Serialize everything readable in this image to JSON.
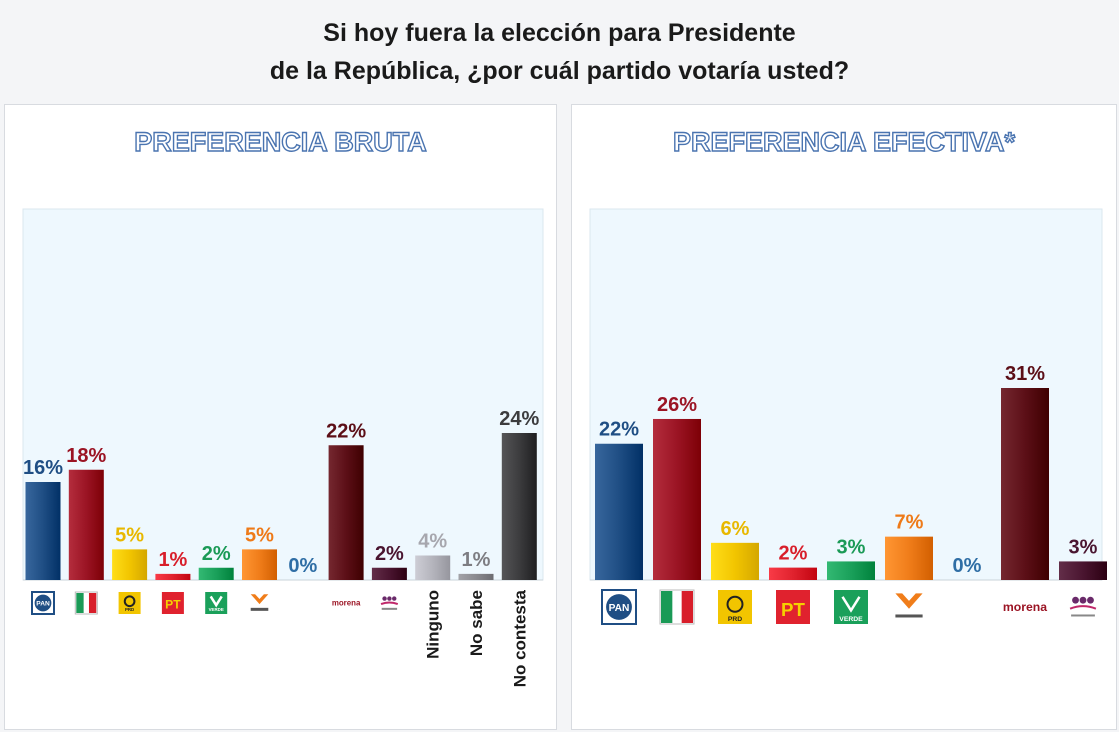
{
  "title": {
    "line1": "Si hoy fuera la elección para Presidente",
    "line2": "de la República, ¿por cuál partido votaría usted?"
  },
  "panels": {
    "left_title": "PREFERENCIA BRUTA",
    "right_title": "PREFERENCIA EFECTIVA*"
  },
  "colors": {
    "PAN": "#1f4e84",
    "PRI": "#9b1424",
    "PRD": "#f2c500",
    "PT": "#e0222e",
    "VERDE": "#1aa05a",
    "MC": "#f07d1a",
    "MORENA": "#5c0f17",
    "OTHER": "#4a1530",
    "NINGUNO": "#b4b4bc",
    "NOSABE": "#8a8a8f",
    "NOCONTESTA": "#3c3c3e"
  },
  "logo_texts": {
    "PAN": "PAN",
    "PRD": "PRD",
    "PT": "PT",
    "VERDE": "VERDE",
    "MORENA": "morena"
  },
  "chart_data": [
    {
      "type": "bar",
      "title": "PREFERENCIA BRUTA",
      "categories": [
        "PAN",
        "PRI",
        "PRD",
        "PT",
        "VERDE",
        "MC",
        "",
        "MORENA",
        "OTHER",
        "Ninguno",
        "No sabe",
        "No contesta"
      ],
      "values": [
        16,
        18,
        5,
        1,
        2,
        5,
        0,
        22,
        2,
        4,
        1,
        24
      ],
      "labels": [
        "16%",
        "18%",
        "5%",
        "1%",
        "2%",
        "5%",
        "0%",
        "22%",
        "2%",
        "4%",
        "1%",
        "24%"
      ],
      "ylim": [
        0,
        24
      ]
    },
    {
      "type": "bar",
      "title": "PREFERENCIA EFECTIVA*",
      "categories": [
        "PAN",
        "PRI",
        "PRD",
        "PT",
        "VERDE",
        "MC",
        "",
        "MORENA",
        "OTHER"
      ],
      "values": [
        22,
        26,
        6,
        2,
        3,
        7,
        0,
        31,
        3
      ],
      "labels": [
        "22%",
        "26%",
        "6%",
        "2%",
        "3%",
        "7%",
        "0%",
        "31%",
        "3%"
      ],
      "ylim": [
        0,
        31
      ]
    }
  ]
}
